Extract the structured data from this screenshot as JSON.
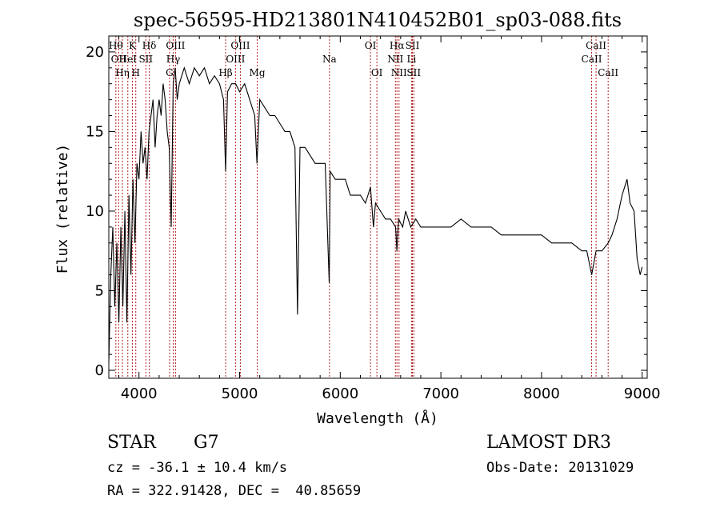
{
  "chart_data": {
    "type": "line",
    "title": "spec-56595-HD213801N410452B01_sp03-088.fits",
    "xlabel": "Wavelength (Å)",
    "ylabel": "Flux (relative)",
    "xlim": [
      3700,
      9050
    ],
    "ylim": [
      -0.5,
      21
    ],
    "xticks": [
      4000,
      5000,
      6000,
      7000,
      8000,
      9000
    ],
    "xtick_labels": [
      "4000",
      "5000",
      "6000",
      "7000",
      "8000",
      "9000"
    ],
    "yticks": [
      0,
      5,
      10,
      15,
      20
    ],
    "ytick_labels": [
      "0",
      "5",
      "10",
      "15",
      "20"
    ],
    "series": [
      {
        "x": [
          3700,
          3720,
          3740,
          3760,
          3780,
          3800,
          3820,
          3840,
          3860,
          3880,
          3900,
          3920,
          3940,
          3960,
          3980,
          4000,
          4020,
          4040,
          4060,
          4080,
          4100,
          4120,
          4140,
          4160,
          4180,
          4200,
          4220,
          4240,
          4260,
          4280,
          4300,
          4320,
          4340,
          4360,
          4380,
          4400,
          4450,
          4500,
          4550,
          4600,
          4650,
          4700,
          4750,
          4800,
          4840,
          4861,
          4880,
          4920,
          4960,
          5000,
          5050,
          5100,
          5150,
          5172,
          5200,
          5250,
          5300,
          5350,
          5400,
          5450,
          5500,
          5550,
          5575,
          5600,
          5650,
          5700,
          5750,
          5800,
          5850,
          5890,
          5900,
          5950,
          6000,
          6050,
          6100,
          6150,
          6200,
          6250,
          6300,
          6330,
          6350,
          6400,
          6450,
          6500,
          6550,
          6563,
          6580,
          6620,
          6650,
          6700,
          6750,
          6800,
          6850,
          6900,
          6950,
          7000,
          7100,
          7200,
          7300,
          7400,
          7500,
          7600,
          7700,
          7800,
          7900,
          8000,
          8100,
          8200,
          8300,
          8400,
          8450,
          8498,
          8542,
          8600,
          8662,
          8700,
          8750,
          8800,
          8850,
          8880,
          8920,
          8950,
          8980,
          9000
        ],
        "y": [
          0.5,
          6,
          9,
          4,
          8,
          3,
          9,
          4,
          10,
          3,
          11,
          6,
          12,
          8,
          13,
          12,
          15,
          13,
          14,
          12,
          15,
          16,
          17,
          14,
          16,
          17,
          16,
          18,
          17,
          15,
          14,
          9,
          18,
          19,
          17,
          18,
          19,
          18,
          19,
          18.5,
          19,
          18,
          18.5,
          18,
          17,
          12.5,
          17.5,
          18,
          18,
          17.5,
          18,
          17,
          16,
          13,
          17,
          16.5,
          16,
          16,
          15.5,
          15,
          15,
          14,
          3.5,
          14,
          14,
          13.5,
          13,
          13,
          13,
          5.5,
          12.5,
          12,
          12,
          12,
          11,
          11,
          11,
          10.5,
          11.5,
          9,
          10.5,
          10,
          9.5,
          9.5,
          9,
          7.5,
          9.5,
          9,
          10,
          9,
          9.5,
          9,
          9,
          9,
          9,
          9,
          9,
          9.5,
          9,
          9,
          9,
          8.5,
          8.5,
          8.5,
          8.5,
          8.5,
          8,
          8,
          8,
          7.5,
          7.5,
          6,
          7.5,
          7.5,
          8,
          8.5,
          9.5,
          11,
          12,
          10.5,
          10,
          7,
          6,
          6.5
        ]
      }
    ],
    "lines": [
      {
        "x": 3770,
        "label": "Hθ",
        "row": 1
      },
      {
        "x": 3798,
        "label": "OII",
        "row": 2
      },
      {
        "x": 3835,
        "label": "Hη",
        "row": 3
      },
      {
        "x": 3889,
        "label": "HeI",
        "row": 2
      },
      {
        "x": 3934,
        "label": "K",
        "row": 1
      },
      {
        "x": 3968,
        "label": "H",
        "row": 3
      },
      {
        "x": 4068,
        "label": "SII",
        "row": 2
      },
      {
        "x": 4102,
        "label": "Hδ",
        "row": 1
      },
      {
        "x": 4304,
        "label": "G",
        "row": 3
      },
      {
        "x": 4340,
        "label": "Hγ",
        "row": 2
      },
      {
        "x": 4363,
        "label": "OIII",
        "row": 1
      },
      {
        "x": 4861,
        "label": "Hβ",
        "row": 3
      },
      {
        "x": 4959,
        "label": "OIII",
        "row": 2
      },
      {
        "x": 5007,
        "label": "OIII",
        "row": 1
      },
      {
        "x": 5175,
        "label": "Mg",
        "row": 3
      },
      {
        "x": 5893,
        "label": "Na",
        "row": 2
      },
      {
        "x": 6300,
        "label": "OI",
        "row": 1
      },
      {
        "x": 6364,
        "label": "OI",
        "row": 3
      },
      {
        "x": 6548,
        "label": "NII",
        "row": 2
      },
      {
        "x": 6563,
        "label": "Hα",
        "row": 1
      },
      {
        "x": 6584,
        "label": "NII",
        "row": 3
      },
      {
        "x": 6708,
        "label": "Li",
        "row": 2
      },
      {
        "x": 6717,
        "label": "SII",
        "row": 1
      },
      {
        "x": 6731,
        "label": "SII",
        "row": 3
      },
      {
        "x": 8498,
        "label": "CaII",
        "row": 2
      },
      {
        "x": 8542,
        "label": "CaII",
        "row": 1
      },
      {
        "x": 8662,
        "label": "CaII",
        "row": 3
      }
    ],
    "colors": {
      "spectrum": "#000000",
      "line_markers": "#b22222",
      "axes": "#000000"
    }
  },
  "info": {
    "class_label": "STAR",
    "subclass": "G7",
    "survey": "LAMOST DR3",
    "cz": "cz = -36.1 ± 10.4 km/s",
    "obs_date": "Obs-Date: 20131029",
    "coords": "RA = 322.91428, DEC =  40.85659"
  }
}
